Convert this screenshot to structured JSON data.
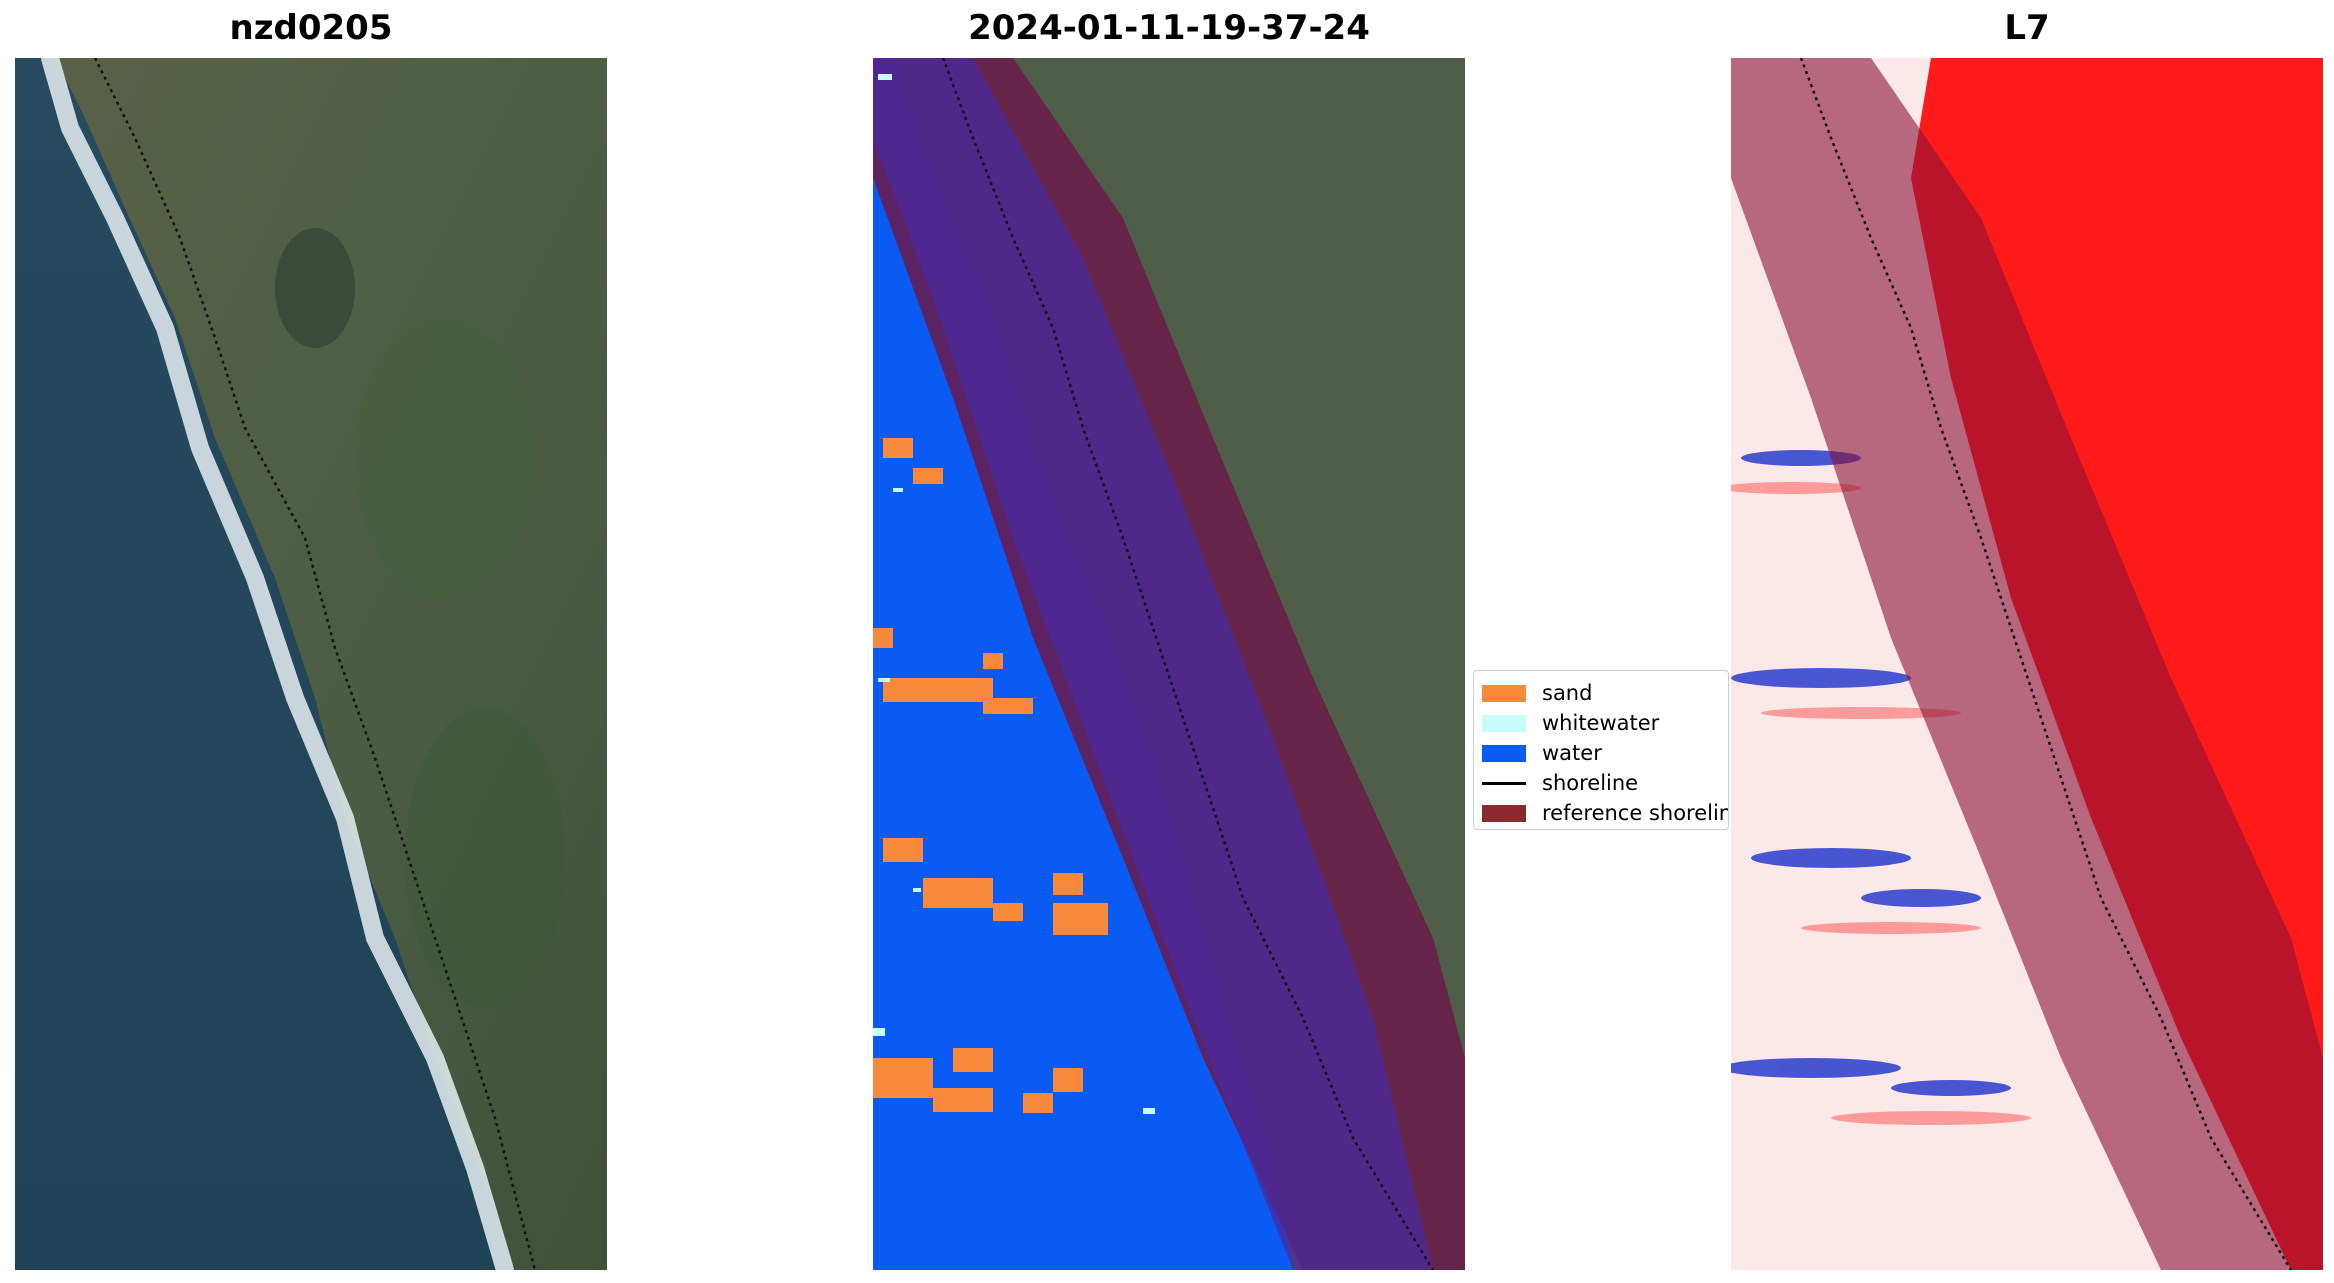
{
  "panels": [
    {
      "title": "nzd0205"
    },
    {
      "title": "2024-01-11-19-37-24"
    },
    {
      "title": "L7"
    }
  ],
  "legend": {
    "items": [
      {
        "label": "sand",
        "color": "#f68a3a",
        "kind": "patch"
      },
      {
        "label": "whitewater",
        "color": "#c8fbfb",
        "kind": "patch"
      },
      {
        "label": "water",
        "color": "#0a5bf3",
        "kind": "patch"
      },
      {
        "label": "shoreline",
        "color": "#000000",
        "kind": "line"
      },
      {
        "label": "reference shoreline",
        "color": "#8b2a2e",
        "kind": "patch"
      }
    ]
  },
  "colors": {
    "ocean": "#23475e",
    "land": "#4e5c4a",
    "vegetation": "#3f5a3a",
    "surf": "#dfe8ee",
    "reference_buffer": "#8b1035",
    "index_positive": "#ff1a1a",
    "index_neutral": "#fbe9ea",
    "index_negative": "#1f35c8"
  }
}
